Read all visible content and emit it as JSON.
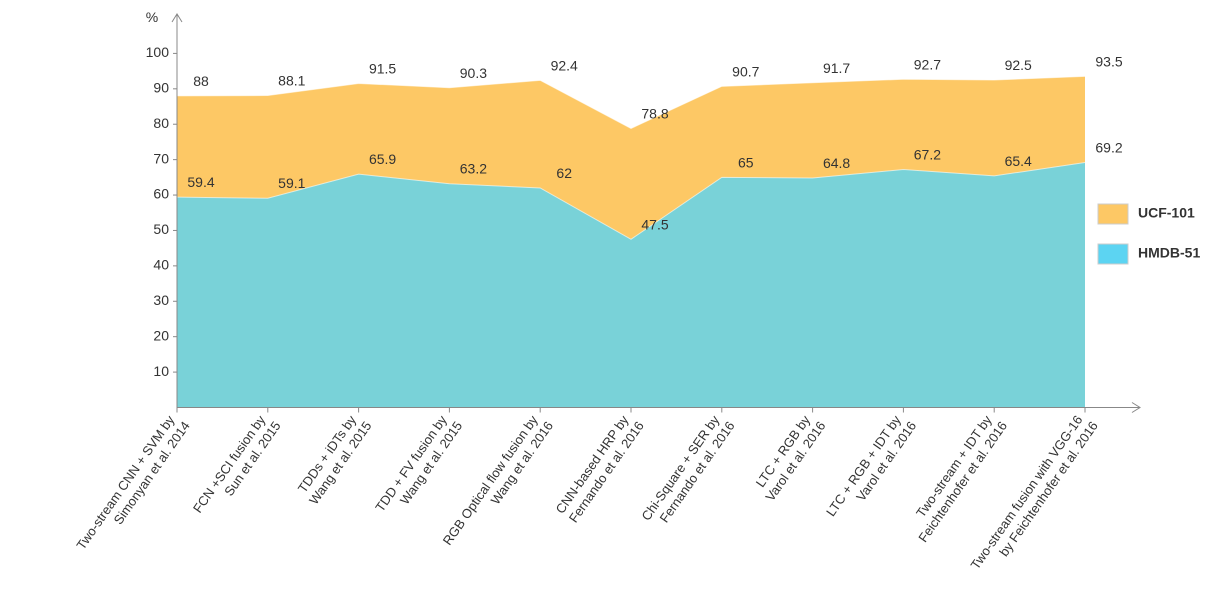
{
  "chart_data": {
    "type": "area",
    "y_label": "%",
    "categories": [
      "Two-stream CNN + SVM by\nSimonyan et al. 2014",
      "FCN +SCI fusion by\nSun et al. 2015",
      "TDDs + iDTs by\nWang et al. 2015",
      "TDD + FV fusion by\nWang et al. 2015",
      "RGB Optical flow fusion by\nWang et al. 2016",
      "CNN-based HRP by\nFernando et al. 2016",
      "Chi-Square + SER by\nFernando et al. 2016",
      "LTC + RGB by\nVarol et al. 2016",
      "LTC + RGB + IDT by\nVarol et al. 2016",
      "Two-stream + IDT by\nFeichtenhofer et al. 2016",
      "Two-stream fusion with VGG-16\nby Feichtenhofer et al. 2016"
    ],
    "series": [
      {
        "name": "UCF-101",
        "color": "#fdc865",
        "values": [
          88,
          88.1,
          91.5,
          90.3,
          92.4,
          78.8,
          90.7,
          91.7,
          92.7,
          92.5,
          93.5
        ]
      },
      {
        "name": "HMDB-51",
        "color": "#5cd4f2",
        "values": [
          59.4,
          59.1,
          65.9,
          63.2,
          62,
          47.5,
          65,
          64.8,
          67.2,
          65.4,
          69.2
        ]
      }
    ],
    "ylim": [
      0,
      110
    ],
    "yticks": [
      10,
      20,
      30,
      40,
      50,
      60,
      70,
      80,
      90,
      100
    ],
    "legend": "right"
  }
}
